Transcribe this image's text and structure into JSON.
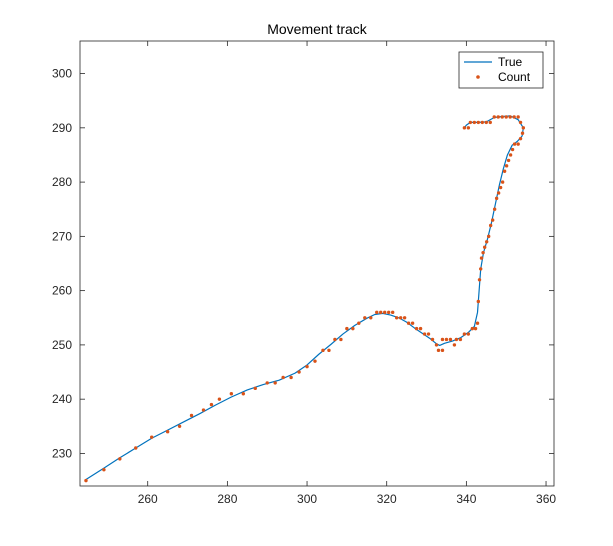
{
  "chart_data": {
    "type": "line",
    "title": "Movement track",
    "xlabel": "",
    "ylabel": "",
    "xlim": [
      243,
      362
    ],
    "ylim": [
      224,
      306
    ],
    "xticks": [
      260,
      280,
      300,
      320,
      340,
      360
    ],
    "yticks": [
      230,
      240,
      250,
      260,
      270,
      280,
      290,
      300
    ],
    "grid": false,
    "legend_position": "top-right",
    "series": [
      {
        "name": "True",
        "style": "line",
        "color": "#0072BD",
        "points": [
          [
            244.5,
            225.2
          ],
          [
            249,
            227.3
          ],
          [
            253,
            229.2
          ],
          [
            257,
            231
          ],
          [
            261,
            232.8
          ],
          [
            265,
            234.3
          ],
          [
            269,
            235.8
          ],
          [
            273,
            237.3
          ],
          [
            277,
            238.9
          ],
          [
            281,
            240.4
          ],
          [
            285,
            241.7
          ],
          [
            289,
            242.7
          ],
          [
            293,
            243.5
          ],
          [
            297,
            244.8
          ],
          [
            300,
            246.3
          ],
          [
            303,
            248.3
          ],
          [
            306,
            250.1
          ],
          [
            309,
            252
          ],
          [
            312,
            253.6
          ],
          [
            315,
            254.9
          ],
          [
            317,
            255.6
          ],
          [
            319,
            255.8
          ],
          [
            321,
            255.5
          ],
          [
            323,
            255
          ],
          [
            325,
            254.2
          ],
          [
            327,
            253.1
          ],
          [
            329,
            252.1
          ],
          [
            331,
            251.1
          ],
          [
            332.5,
            250.2
          ],
          [
            333.3,
            249.9
          ],
          [
            334.5,
            250.3
          ],
          [
            336.5,
            250.7
          ],
          [
            338.5,
            251.3
          ],
          [
            340.5,
            252.3
          ],
          [
            342,
            253.4
          ],
          [
            342.8,
            256
          ],
          [
            343.2,
            260
          ],
          [
            343.6,
            264
          ],
          [
            344.3,
            267
          ],
          [
            345.3,
            269.5
          ],
          [
            346.3,
            272.5
          ],
          [
            347.3,
            276
          ],
          [
            348.3,
            279.5
          ],
          [
            349.3,
            282.5
          ],
          [
            350.3,
            285
          ],
          [
            351.5,
            286.8
          ],
          [
            352.8,
            287.5
          ],
          [
            354,
            288.5
          ],
          [
            354.3,
            290
          ],
          [
            353,
            291.5
          ],
          [
            351,
            292.2
          ],
          [
            349,
            292.1
          ],
          [
            347,
            291.9
          ],
          [
            345,
            291.1
          ],
          [
            343,
            291
          ],
          [
            341,
            291
          ],
          [
            340,
            290.5
          ],
          [
            339.5,
            290
          ]
        ]
      },
      {
        "name": "Count",
        "style": "markers",
        "color": "#D95319",
        "points": [
          [
            244.5,
            225
          ],
          [
            249,
            227
          ],
          [
            253,
            229
          ],
          [
            257,
            231
          ],
          [
            261,
            233
          ],
          [
            265,
            234
          ],
          [
            268,
            235
          ],
          [
            271,
            237
          ],
          [
            274,
            238
          ],
          [
            276,
            239
          ],
          [
            278,
            240
          ],
          [
            281,
            241
          ],
          [
            284,
            241
          ],
          [
            287,
            242
          ],
          [
            290,
            243
          ],
          [
            292,
            243
          ],
          [
            294,
            244
          ],
          [
            296,
            244
          ],
          [
            298,
            245
          ],
          [
            300,
            246
          ],
          [
            302,
            247
          ],
          [
            304,
            249
          ],
          [
            305.5,
            249
          ],
          [
            307,
            251
          ],
          [
            308.5,
            251
          ],
          [
            310,
            253
          ],
          [
            311.5,
            253
          ],
          [
            313,
            254
          ],
          [
            314.5,
            255
          ],
          [
            316,
            255
          ],
          [
            317.5,
            256
          ],
          [
            318.5,
            256
          ],
          [
            319.5,
            256
          ],
          [
            320.5,
            256
          ],
          [
            321.5,
            256
          ],
          [
            322.5,
            255
          ],
          [
            323.5,
            255
          ],
          [
            324.5,
            255
          ],
          [
            325.5,
            254
          ],
          [
            326.5,
            254
          ],
          [
            327.5,
            253
          ],
          [
            328.5,
            253
          ],
          [
            329.5,
            252
          ],
          [
            330.5,
            252
          ],
          [
            331.5,
            251
          ],
          [
            332.5,
            250
          ],
          [
            333,
            249
          ],
          [
            334,
            249
          ],
          [
            334,
            251
          ],
          [
            335,
            251
          ],
          [
            336,
            251
          ],
          [
            337,
            250
          ],
          [
            337.5,
            251
          ],
          [
            338.5,
            251
          ],
          [
            339.5,
            252
          ],
          [
            340.5,
            252
          ],
          [
            341.5,
            253
          ],
          [
            342.3,
            253
          ],
          [
            342.8,
            254
          ],
          [
            343,
            258
          ],
          [
            343.3,
            262
          ],
          [
            343.6,
            264
          ],
          [
            343.8,
            266
          ],
          [
            344.2,
            267
          ],
          [
            344.6,
            268
          ],
          [
            345.1,
            269
          ],
          [
            345.6,
            270
          ],
          [
            346.1,
            272
          ],
          [
            346.6,
            273
          ],
          [
            347.1,
            275
          ],
          [
            347.6,
            277
          ],
          [
            348.1,
            278
          ],
          [
            348.6,
            279
          ],
          [
            349.1,
            280
          ],
          [
            349.6,
            282
          ],
          [
            350.1,
            283
          ],
          [
            350.6,
            284
          ],
          [
            351.1,
            285
          ],
          [
            351.6,
            286
          ],
          [
            352.1,
            287
          ],
          [
            353,
            287
          ],
          [
            353.6,
            288
          ],
          [
            354.1,
            289
          ],
          [
            354.3,
            290
          ],
          [
            353.6,
            291
          ],
          [
            353,
            292
          ],
          [
            352,
            292
          ],
          [
            351,
            292
          ],
          [
            350,
            292
          ],
          [
            349,
            292
          ],
          [
            348,
            292
          ],
          [
            347,
            292
          ],
          [
            346,
            291
          ],
          [
            345,
            291
          ],
          [
            344,
            291
          ],
          [
            343,
            291
          ],
          [
            342,
            291
          ],
          [
            341,
            291
          ],
          [
            340.5,
            290
          ],
          [
            339.5,
            290
          ]
        ]
      }
    ]
  }
}
